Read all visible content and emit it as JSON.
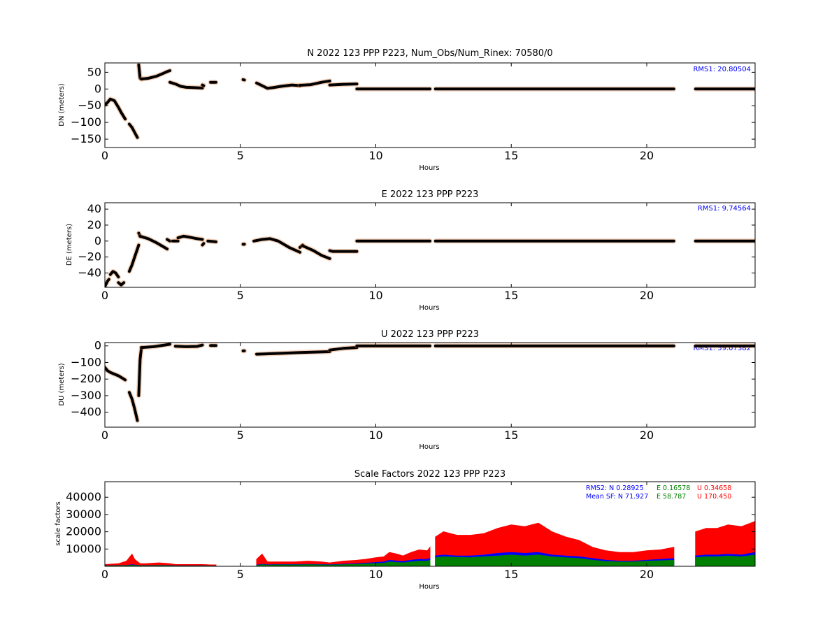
{
  "chart_data": [
    {
      "type": "scatter",
      "title": "N 2022 123 PPP  P223, Num_Obs/Num_Rinex: 70580/0",
      "xlabel": "Hours",
      "ylabel": "DN (meters)",
      "xlim": [
        0,
        24
      ],
      "ylim": [
        -175,
        78
      ],
      "xticks": [
        "0",
        "5",
        "10",
        "15",
        "20"
      ],
      "yticks": [
        "50",
        "0",
        "−50",
        "−100",
        "−150"
      ],
      "annotation": "RMS1: 20.80504",
      "colors": {
        "points": "#000000",
        "errors": "#e07b39",
        "annotation": "#0000ff"
      },
      "segments": [
        {
          "x": [
            0.0,
            0.1,
            0.2,
            0.35,
            0.5,
            0.6,
            0.75
          ],
          "y": [
            -48,
            -40,
            -30,
            -35,
            -55,
            -70,
            -90
          ]
        },
        {
          "x": [
            0.9,
            1.0,
            1.1,
            1.2
          ],
          "y": [
            -105,
            -115,
            -130,
            -145
          ]
        },
        {
          "x": [
            1.25,
            1.3,
            1.35
          ],
          "y": [
            72,
            32,
            30
          ]
        },
        {
          "x": [
            1.35,
            1.6,
            1.9,
            2.1,
            2.3,
            2.4
          ],
          "y": [
            30,
            32,
            38,
            45,
            52,
            55
          ]
        },
        {
          "x": [
            2.4,
            2.6,
            2.8,
            3.0,
            3.3,
            3.6
          ],
          "y": [
            20,
            15,
            8,
            5,
            4,
            3
          ]
        },
        {
          "x": [
            3.6,
            3.65
          ],
          "y": [
            12,
            10
          ]
        },
        {
          "x": [
            3.9,
            4.1
          ],
          "y": [
            20,
            20
          ]
        },
        {
          "x": [
            5.1,
            5.15
          ],
          "y": [
            28,
            27
          ]
        },
        {
          "x": [
            5.6,
            5.8,
            6.0,
            6.2,
            6.5,
            6.9,
            7.2
          ],
          "y": [
            18,
            10,
            2,
            4,
            8,
            12,
            10
          ]
        },
        {
          "x": [
            7.2,
            7.6,
            8.0,
            8.3
          ],
          "y": [
            11,
            13,
            20,
            24
          ]
        },
        {
          "x": [
            8.3,
            8.8,
            9.3
          ],
          "y": [
            12,
            14,
            15
          ]
        },
        {
          "x": [
            9.3,
            10.5,
            12.0
          ],
          "y": [
            0,
            0,
            0
          ]
        },
        {
          "x": [
            12.2,
            16.0,
            21.0
          ],
          "y": [
            0,
            0,
            0
          ]
        },
        {
          "x": [
            21.8,
            24.0
          ],
          "y": [
            0,
            0
          ]
        }
      ]
    },
    {
      "type": "scatter",
      "title": "E 2022 123 PPP  P223",
      "xlabel": "Hours",
      "ylabel": "DE (meters)",
      "xlim": [
        0,
        24
      ],
      "ylim": [
        -58,
        48
      ],
      "xticks": [
        "0",
        "5",
        "10",
        "15",
        "20"
      ],
      "yticks": [
        "40",
        "20",
        "0",
        "−20",
        "−40"
      ],
      "annotation": "RMS1:  9.74564",
      "colors": {
        "points": "#000000",
        "errors": "#e07b39",
        "annotation": "#0000ff"
      },
      "segments": [
        {
          "x": [
            0.0,
            0.1,
            0.15
          ],
          "y": [
            -57,
            -50,
            -48
          ]
        },
        {
          "x": [
            0.2,
            0.3,
            0.4,
            0.5
          ],
          "y": [
            -42,
            -38,
            -40,
            -45
          ]
        },
        {
          "x": [
            0.5,
            0.6,
            0.7
          ],
          "y": [
            -52,
            -55,
            -52
          ]
        },
        {
          "x": [
            0.9,
            1.0,
            1.1,
            1.2,
            1.25
          ],
          "y": [
            -38,
            -30,
            -20,
            -10,
            -5
          ]
        },
        {
          "x": [
            1.25,
            1.3
          ],
          "y": [
            10,
            6
          ]
        },
        {
          "x": [
            1.3,
            1.6,
            1.9,
            2.2,
            2.3
          ],
          "y": [
            6,
            3,
            -2,
            -8,
            -10
          ]
        },
        {
          "x": [
            2.3,
            2.4
          ],
          "y": [
            2,
            0
          ]
        },
        {
          "x": [
            2.5,
            2.6,
            2.7
          ],
          "y": [
            0,
            0,
            0
          ]
        },
        {
          "x": [
            2.7,
            2.9,
            3.1,
            3.4,
            3.6
          ],
          "y": [
            4,
            6,
            5,
            3,
            2
          ]
        },
        {
          "x": [
            3.6,
            3.65
          ],
          "y": [
            -5,
            -3
          ]
        },
        {
          "x": [
            3.8,
            4.1
          ],
          "y": [
            0,
            -1
          ]
        },
        {
          "x": [
            5.1,
            5.15
          ],
          "y": [
            -4,
            -4
          ]
        },
        {
          "x": [
            5.5,
            5.8,
            6.1,
            6.4,
            6.8,
            7.2
          ],
          "y": [
            0,
            2,
            3,
            0,
            -8,
            -14
          ]
        },
        {
          "x": [
            7.2,
            7.3
          ],
          "y": [
            -8,
            -5
          ]
        },
        {
          "x": [
            7.3,
            7.7,
            8.0,
            8.3
          ],
          "y": [
            -6,
            -12,
            -18,
            -22
          ]
        },
        {
          "x": [
            8.3,
            8.4,
            9.3
          ],
          "y": [
            -12,
            -13,
            -13
          ]
        },
        {
          "x": [
            9.3,
            10.5,
            12.0
          ],
          "y": [
            0,
            0,
            0
          ]
        },
        {
          "x": [
            12.2,
            16.0,
            21.0
          ],
          "y": [
            0,
            0,
            0
          ]
        },
        {
          "x": [
            21.8,
            24.0
          ],
          "y": [
            0,
            0
          ]
        }
      ]
    },
    {
      "type": "scatter",
      "title": "U 2022 123 PPP  P223",
      "xlabel": "Hours",
      "ylabel": "DU (meters)",
      "xlim": [
        0,
        24
      ],
      "ylim": [
        -490,
        20
      ],
      "xticks": [
        "0",
        "5",
        "10",
        "15",
        "20"
      ],
      "yticks": [
        "0",
        "−100",
        "−200",
        "−300",
        "−400"
      ],
      "annotation": "RMS1: 59.07382",
      "colors": {
        "points": "#000000",
        "errors": "#e07b39",
        "annotation": "#0000ff"
      },
      "segments": [
        {
          "x": [
            0.0,
            0.1,
            0.2,
            0.35,
            0.5,
            0.6,
            0.75
          ],
          "y": [
            -130,
            -150,
            -160,
            -170,
            -180,
            -190,
            -205
          ]
        },
        {
          "x": [
            0.9,
            1.0,
            1.1,
            1.2
          ],
          "y": [
            -280,
            -320,
            -380,
            -450
          ]
        },
        {
          "x": [
            1.25,
            1.3,
            1.35
          ],
          "y": [
            -300,
            -80,
            -10
          ]
        },
        {
          "x": [
            1.35,
            1.8,
            2.2,
            2.4
          ],
          "y": [
            -10,
            -5,
            5,
            10
          ]
        },
        {
          "x": [
            2.6,
            3.0,
            3.4,
            3.6
          ],
          "y": [
            -2,
            -5,
            -3,
            5
          ]
        },
        {
          "x": [
            3.9,
            4.1
          ],
          "y": [
            2,
            2
          ]
        },
        {
          "x": [
            5.1,
            5.15
          ],
          "y": [
            -30,
            -30
          ]
        },
        {
          "x": [
            5.6,
            6.5,
            7.2,
            8.3
          ],
          "y": [
            -50,
            -45,
            -40,
            -35
          ]
        },
        {
          "x": [
            8.3,
            8.8,
            9.3
          ],
          "y": [
            -25,
            -15,
            -10
          ]
        },
        {
          "x": [
            9.3,
            10.5,
            12.0
          ],
          "y": [
            0,
            0,
            0
          ]
        },
        {
          "x": [
            12.2,
            16.0,
            21.0
          ],
          "y": [
            0,
            0,
            0
          ]
        },
        {
          "x": [
            21.8,
            24.0
          ],
          "y": [
            0,
            0
          ]
        }
      ]
    },
    {
      "type": "area",
      "title": "Scale Factors 2022 123 PPP  P223",
      "xlabel": "Hours",
      "ylabel": "scale factors",
      "xlim": [
        0,
        24
      ],
      "ylim": [
        0,
        49000
      ],
      "xticks": [
        "0",
        "5",
        "10",
        "15",
        "20"
      ],
      "yticks": [
        "40000",
        "30000",
        "20000",
        "10000"
      ],
      "annotations": {
        "rms2": {
          "label": "RMS2: N",
          "n": "0.28925",
          "e_label": "E",
          "e": "0.16578",
          "u_label": "U",
          "u": "0.34658"
        },
        "mean_sf": {
          "label": "Mean SF: N",
          "n": "71.927",
          "e_label": "E",
          "e": "58.787",
          "u_label": "U",
          "u": "170.450"
        }
      },
      "colors": {
        "u": "#ff0000",
        "n": "#0000ff",
        "e": "#008000"
      },
      "x": [
        0,
        0.5,
        0.8,
        1.0,
        1.1,
        1.3,
        1.5,
        2.0,
        2.4,
        2.6,
        3.0,
        3.6,
        3.9,
        4.1,
        5.1,
        5.6,
        5.8,
        6.0,
        6.5,
        7.0,
        7.5,
        8.0,
        8.3,
        8.8,
        9.3,
        9.6,
        10.0,
        10.3,
        10.5,
        10.8,
        11.0,
        11.3,
        11.6,
        11.9,
        12.0,
        12.2,
        12.5,
        13.0,
        13.5,
        14.0,
        14.5,
        15.0,
        15.5,
        16.0,
        16.5,
        17.0,
        17.5,
        18.0,
        18.5,
        19.0,
        19.5,
        20.0,
        20.5,
        21.0,
        21.8,
        22.2,
        22.6,
        23.0,
        23.5,
        24.0
      ],
      "series": [
        {
          "key": "u",
          "name": "U",
          "values": [
            1000,
            1500,
            3000,
            7000,
            4000,
            1500,
            1500,
            2000,
            1500,
            1000,
            1000,
            1000,
            800,
            800,
            500,
            4000,
            7000,
            2500,
            2500,
            2500,
            3000,
            2500,
            2000,
            3000,
            3500,
            4000,
            5000,
            5500,
            8000,
            7000,
            6000,
            8000,
            9500,
            9000,
            11000,
            17000,
            20000,
            18000,
            18000,
            19000,
            22000,
            24000,
            23000,
            25000,
            20000,
            17000,
            15000,
            11000,
            9000,
            8000,
            8000,
            9000,
            9500,
            11000,
            20000,
            22000,
            22000,
            24000,
            23000,
            26000
          ]
        },
        {
          "key": "n",
          "name": "N",
          "values": [
            300,
            400,
            500,
            900,
            700,
            400,
            400,
            500,
            400,
            300,
            300,
            300,
            200,
            200,
            200,
            700,
            1200,
            900,
            1000,
            1000,
            1100,
            1000,
            900,
            1200,
            1500,
            1800,
            2200,
            2500,
            3500,
            3000,
            2800,
            3500,
            4000,
            4000,
            4500,
            6000,
            6500,
            6000,
            6000,
            6500,
            7500,
            8000,
            7500,
            8000,
            6500,
            6000,
            5500,
            4500,
            3500,
            3000,
            3000,
            3500,
            4000,
            4500,
            6000,
            6500,
            6500,
            7000,
            6500,
            8000
          ]
        },
        {
          "key": "e",
          "name": "E",
          "values": [
            200,
            300,
            400,
            600,
            500,
            300,
            300,
            400,
            300,
            200,
            200,
            200,
            150,
            150,
            150,
            500,
            900,
            700,
            800,
            800,
            900,
            800,
            700,
            900,
            1100,
            1300,
            1600,
            1800,
            2500,
            2200,
            2000,
            2500,
            3000,
            3000,
            3500,
            5000,
            5500,
            5200,
            5000,
            5500,
            6000,
            6500,
            6000,
            6500,
            5500,
            5000,
            4500,
            3500,
            2800,
            2500,
            2500,
            3000,
            3200,
            3500,
            5000,
            5500,
            5500,
            6000,
            5500,
            6500
          ]
        }
      ],
      "gaps": [
        [
          4.15,
          5.05
        ],
        [
          5.2,
          5.55
        ],
        [
          12.0,
          12.2
        ],
        [
          21.0,
          21.8
        ]
      ]
    }
  ]
}
